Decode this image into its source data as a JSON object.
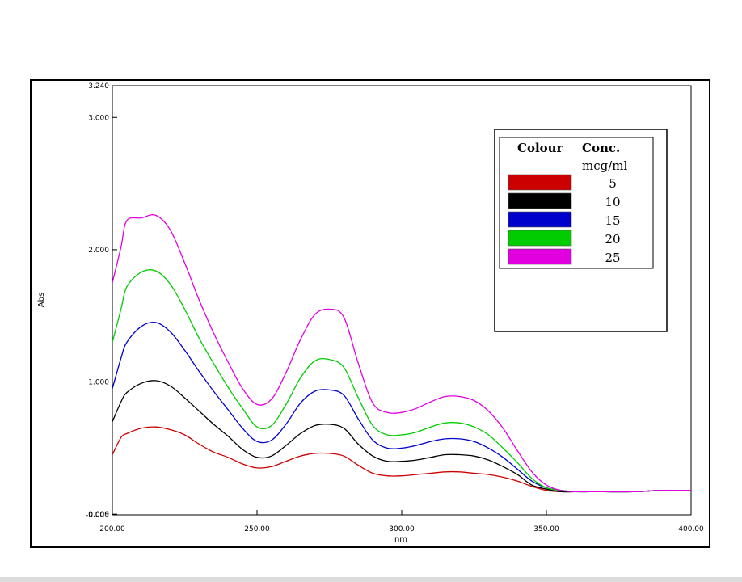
{
  "chart_data": {
    "type": "line",
    "title": "",
    "xlabel": "nm",
    "ylabel": "Abs",
    "xlim": [
      200,
      400
    ],
    "ylim": [
      -0.005,
      3.24
    ],
    "x_ticks": [
      "200.00",
      "250.00",
      "300.00",
      "350.00",
      "400.00"
    ],
    "y_ticks": [
      {
        "value": 3.24,
        "label": "3.240"
      },
      {
        "value": 3.0,
        "label": "3.000"
      },
      {
        "value": 2.0,
        "label": "2.000"
      },
      {
        "value": 1.0,
        "label": "1.000"
      },
      {
        "value": 0.0,
        "label": "0.000"
      },
      {
        "value": -0.005,
        "label": "-0.005"
      }
    ],
    "grid": false,
    "legend": {
      "position": "top-right",
      "header_colour": "Colour",
      "header_conc": "Conc.",
      "header_unit": "mcg/ml"
    },
    "x": [
      200,
      203,
      205,
      210,
      215,
      220,
      225,
      230,
      235,
      240,
      245,
      250,
      255,
      260,
      265,
      270,
      275,
      280,
      285,
      290,
      295,
      300,
      305,
      310,
      315,
      320,
      325,
      330,
      335,
      340,
      345,
      350,
      355,
      360,
      365,
      370,
      380,
      390,
      400
    ],
    "series": [
      {
        "name": "5",
        "color": "#cc0000",
        "values": [
          0.45,
          0.58,
          0.61,
          0.65,
          0.66,
          0.64,
          0.6,
          0.53,
          0.47,
          0.43,
          0.38,
          0.35,
          0.36,
          0.4,
          0.44,
          0.46,
          0.46,
          0.44,
          0.37,
          0.31,
          0.29,
          0.29,
          0.3,
          0.31,
          0.32,
          0.32,
          0.31,
          0.3,
          0.28,
          0.25,
          0.21,
          0.18,
          0.17,
          0.17,
          0.17,
          0.17,
          0.17,
          0.18,
          0.18
        ]
      },
      {
        "name": "10",
        "color": "#000000",
        "values": [
          0.7,
          0.85,
          0.92,
          0.99,
          1.01,
          0.97,
          0.88,
          0.78,
          0.68,
          0.59,
          0.49,
          0.43,
          0.44,
          0.52,
          0.61,
          0.67,
          0.68,
          0.65,
          0.53,
          0.44,
          0.4,
          0.4,
          0.41,
          0.43,
          0.45,
          0.45,
          0.44,
          0.41,
          0.36,
          0.3,
          0.22,
          0.19,
          0.17,
          0.17,
          0.17,
          0.17,
          0.17,
          0.18,
          0.18
        ]
      },
      {
        "name": "15",
        "color": "#0000cc",
        "values": [
          0.95,
          1.18,
          1.3,
          1.42,
          1.45,
          1.38,
          1.24,
          1.08,
          0.93,
          0.79,
          0.65,
          0.55,
          0.56,
          0.68,
          0.84,
          0.93,
          0.94,
          0.9,
          0.72,
          0.56,
          0.5,
          0.5,
          0.52,
          0.55,
          0.57,
          0.57,
          0.55,
          0.5,
          0.43,
          0.34,
          0.25,
          0.2,
          0.18,
          0.17,
          0.17,
          0.17,
          0.17,
          0.18,
          0.18
        ]
      },
      {
        "name": "20",
        "color": "#00cc00",
        "values": [
          1.3,
          1.55,
          1.72,
          1.83,
          1.84,
          1.74,
          1.55,
          1.33,
          1.14,
          0.96,
          0.8,
          0.66,
          0.67,
          0.83,
          1.03,
          1.16,
          1.17,
          1.11,
          0.88,
          0.67,
          0.6,
          0.6,
          0.62,
          0.66,
          0.69,
          0.69,
          0.66,
          0.6,
          0.5,
          0.39,
          0.27,
          0.2,
          0.18,
          0.17,
          0.17,
          0.17,
          0.17,
          0.18,
          0.18
        ]
      },
      {
        "name": "25",
        "color": "#e000e0",
        "values": [
          1.75,
          2.02,
          2.22,
          2.24,
          2.26,
          2.15,
          1.9,
          1.62,
          1.37,
          1.15,
          0.95,
          0.83,
          0.87,
          1.07,
          1.32,
          1.51,
          1.55,
          1.49,
          1.14,
          0.84,
          0.77,
          0.77,
          0.8,
          0.85,
          0.89,
          0.89,
          0.86,
          0.78,
          0.65,
          0.48,
          0.32,
          0.22,
          0.18,
          0.17,
          0.17,
          0.17,
          0.17,
          0.18,
          0.18
        ]
      }
    ]
  }
}
